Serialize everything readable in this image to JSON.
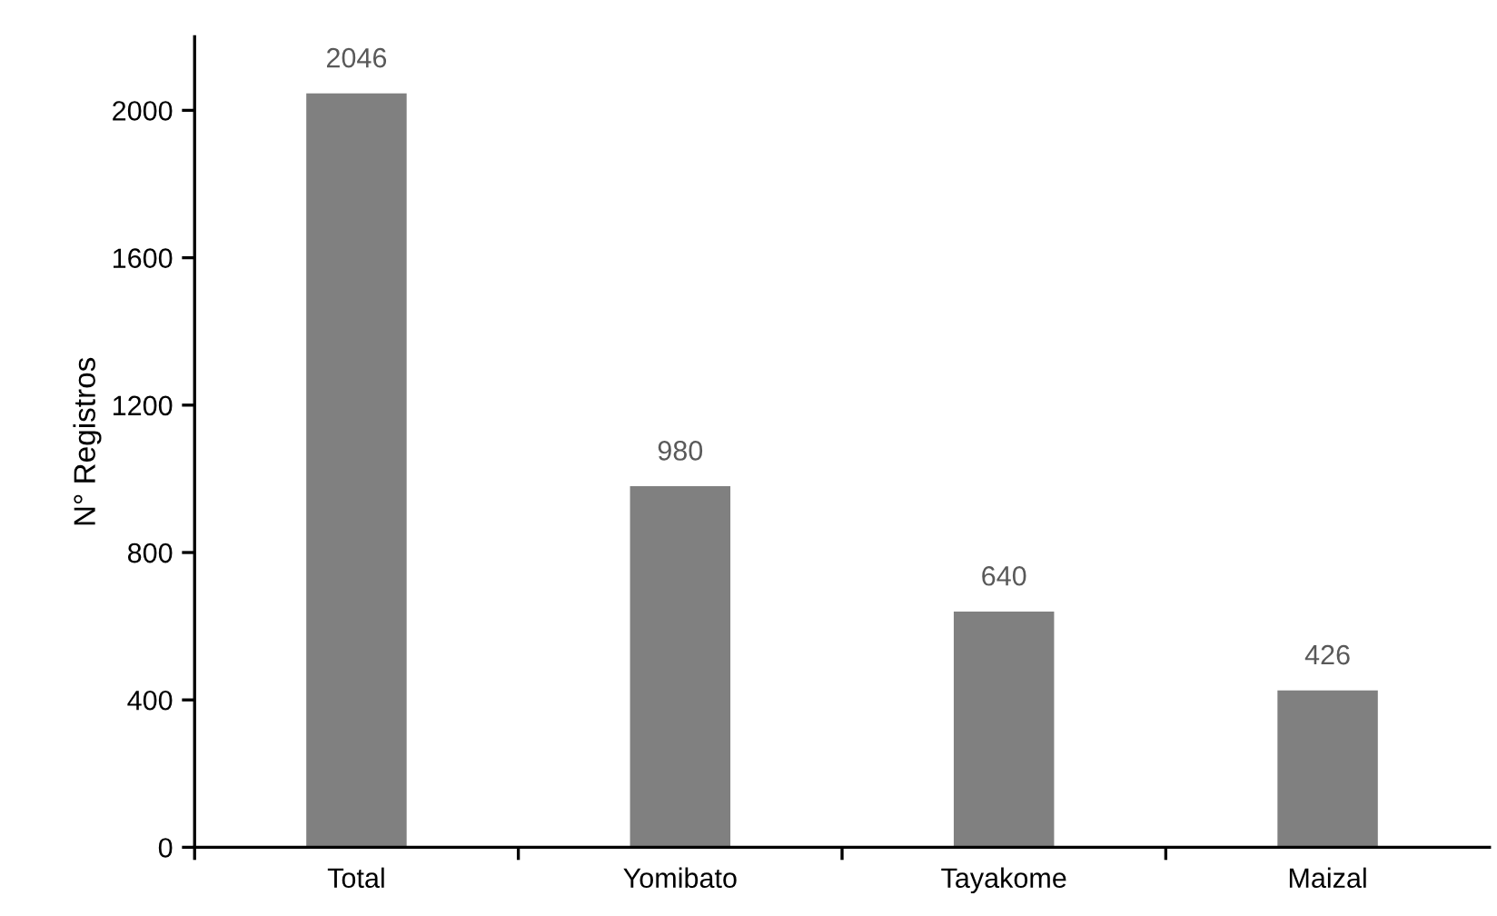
{
  "chart_data": {
    "type": "bar",
    "ylabel": "N° Registros",
    "categories": [
      "Total",
      "Yomibato",
      "Tayakome",
      "Maizal"
    ],
    "values": [
      2046,
      980,
      640,
      426
    ],
    "color": "#808080",
    "ylim": [
      0,
      2200
    ],
    "yticks": [
      0,
      400,
      800,
      1200,
      1600,
      2000
    ],
    "grid": false,
    "data_labels": true
  }
}
